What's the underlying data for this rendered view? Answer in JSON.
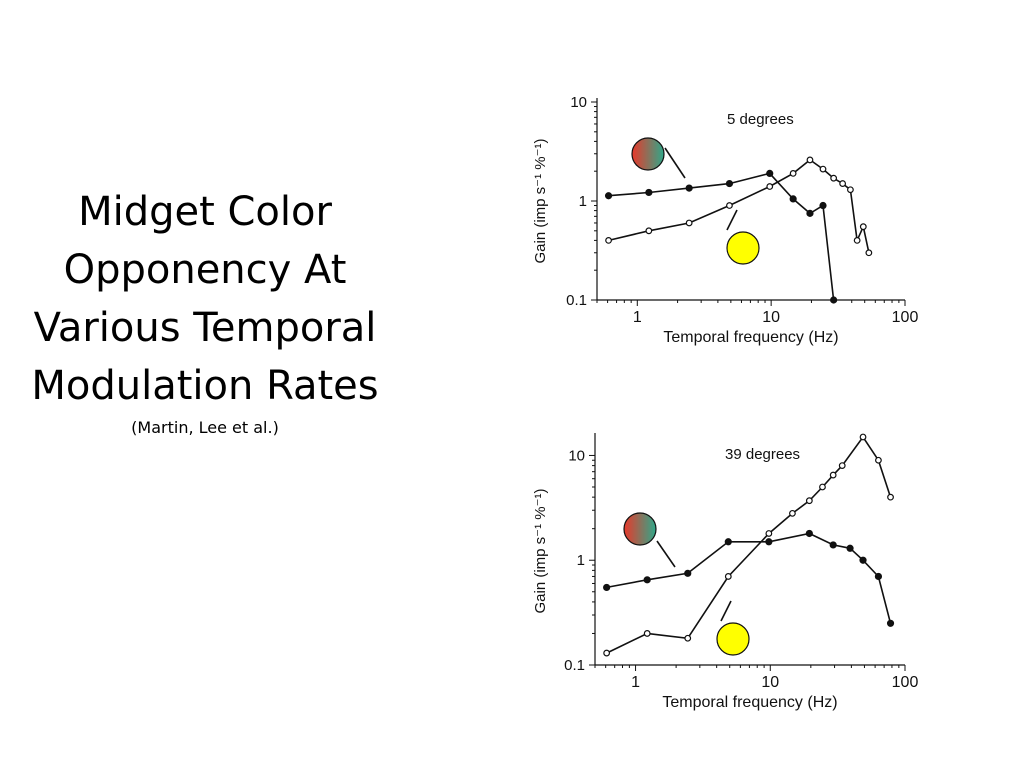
{
  "slide": {
    "title": "Midget Color Opponency At Various Temporal Modulation Rates",
    "citation": "(Martin, Lee et al.)"
  },
  "colors": {
    "line": "#111111",
    "red_green_gradient_start": "#e8392b",
    "red_green_gradient_end": "#2fa88a",
    "yellow": "#ffff00"
  },
  "icons": {
    "red_green_stimulus": "red-green-gradient-circle-icon",
    "luminance_stimulus": "yellow-circle-icon"
  },
  "chart_data": [
    {
      "type": "line",
      "title": "5 degrees",
      "xlabel": "Temporal frequency (Hz)",
      "ylabel": "Gain (imp s⁻¹ %⁻¹)",
      "xscale": "log",
      "yscale": "log",
      "xlim": [
        0.5,
        100
      ],
      "ylim": [
        0.1,
        10
      ],
      "xticks": [
        {
          "v": 1,
          "label": "1"
        },
        {
          "v": 10,
          "label": "10"
        },
        {
          "v": 100,
          "label": "100"
        }
      ],
      "yticks": [
        {
          "v": 0.1,
          "label": "0.1"
        },
        {
          "v": 1,
          "label": "1"
        },
        {
          "v": 10,
          "label": "10"
        }
      ],
      "grid": false,
      "series": [
        {
          "marker": "filled",
          "stimulus": "red-green",
          "x": [
            0.61,
            1.22,
            2.44,
            4.88,
            9.76,
            14.6,
            19.5,
            24.4,
            29.3
          ],
          "y": [
            1.13,
            1.22,
            1.35,
            1.5,
            1.9,
            1.05,
            0.75,
            0.9,
            0.1
          ]
        },
        {
          "marker": "open",
          "stimulus": "luminance",
          "x": [
            0.61,
            1.22,
            2.44,
            4.88,
            9.76,
            14.6,
            19.5,
            24.4,
            29.3,
            34.2,
            39.1,
            43.9,
            48.8,
            53.7
          ],
          "y": [
            0.4,
            0.5,
            0.6,
            0.9,
            1.4,
            1.9,
            2.6,
            2.1,
            1.7,
            1.5,
            1.3,
            0.4,
            0.55,
            0.3
          ]
        }
      ]
    },
    {
      "type": "line",
      "title": "39 degrees",
      "xlabel": "Temporal frequency (Hz)",
      "ylabel": "Gain (imp s⁻¹ %⁻¹)",
      "xscale": "log",
      "yscale": "log",
      "xlim": [
        0.5,
        100
      ],
      "ylim": [
        0.1,
        15
      ],
      "xticks": [
        {
          "v": 1,
          "label": "1"
        },
        {
          "v": 10,
          "label": "10"
        },
        {
          "v": 100,
          "label": "100"
        }
      ],
      "yticks": [
        {
          "v": 0.1,
          "label": "0.1"
        },
        {
          "v": 1,
          "label": "1"
        },
        {
          "v": 10,
          "label": "10"
        }
      ],
      "grid": false,
      "series": [
        {
          "marker": "filled",
          "stimulus": "red-green",
          "x": [
            0.61,
            1.22,
            2.44,
            4.88,
            9.76,
            19.5,
            29.3,
            39.1,
            48.8,
            63.5,
            78.1
          ],
          "y": [
            0.55,
            0.65,
            0.75,
            1.5,
            1.5,
            1.8,
            1.4,
            1.3,
            1.0,
            0.7,
            0.25
          ]
        },
        {
          "marker": "open",
          "stimulus": "luminance",
          "x": [
            0.61,
            1.22,
            2.44,
            4.88,
            9.76,
            14.6,
            19.5,
            24.4,
            29.3,
            34.2,
            48.8,
            63.5,
            78.1
          ],
          "y": [
            0.13,
            0.2,
            0.18,
            0.7,
            1.8,
            2.8,
            3.7,
            5.0,
            6.5,
            8.0,
            15.0,
            9.0,
            4.0
          ]
        }
      ]
    }
  ]
}
